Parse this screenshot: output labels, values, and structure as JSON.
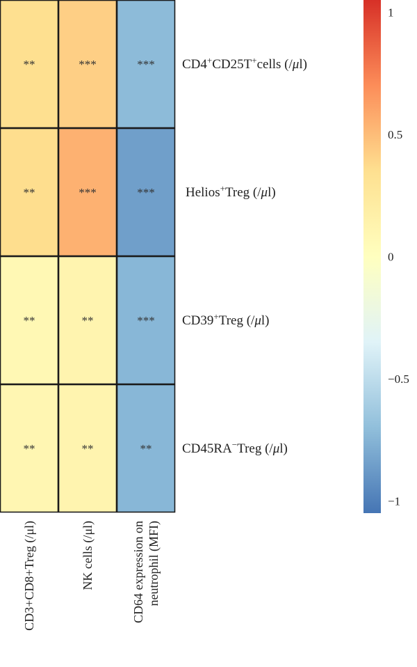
{
  "chart_data": {
    "type": "heatmap",
    "rows": [
      {
        "label_main": "CD4",
        "sup1": "+",
        "mid": "CD25T",
        "sup2": "+",
        "tail": "cells (/",
        "unit": "μ",
        "end": "l)"
      },
      {
        "label_main": "Helios",
        "sup1": "+",
        "mid": "Treg (/",
        "sup2": "",
        "tail": "",
        "unit": "μ",
        "end": "l)"
      },
      {
        "label_main": "CD39",
        "sup1": "+",
        "mid": "Treg (/",
        "sup2": "",
        "tail": "",
        "unit": "μ",
        "end": "l)"
      },
      {
        "label_main": "CD45RA",
        "sup1": "−",
        "mid": "Treg (/",
        "sup2": "",
        "tail": "",
        "unit": "μ",
        "end": "l)"
      }
    ],
    "columns": [
      {
        "lines": [
          "CD3+CD8+Treg (/μl)"
        ]
      },
      {
        "lines": [
          "NK cells (/μl)"
        ]
      },
      {
        "lines": [
          "CD64 expression on",
          "neutrophil (MFI)"
        ]
      }
    ],
    "values": [
      [
        0.35,
        0.42,
        -0.72
      ],
      [
        0.36,
        0.55,
        -0.85
      ],
      [
        0.08,
        0.12,
        -0.74
      ],
      [
        0.1,
        0.12,
        -0.74
      ]
    ],
    "significance": [
      [
        "**",
        "***",
        "***"
      ],
      [
        "**",
        "***",
        "***"
      ],
      [
        "**",
        "**",
        "***"
      ],
      [
        "**",
        "**",
        "**"
      ]
    ],
    "colorbar": {
      "range": [
        -1.05,
        1.05
      ],
      "ticks": [
        1,
        0.5,
        0,
        -0.5,
        -1
      ],
      "tick_labels": [
        "1",
        "0.5",
        "0",
        "−0.5",
        "−1"
      ],
      "colors": [
        "#4575b4",
        "#91bfdb",
        "#e0f3f8",
        "#ffffbf",
        "#fee090",
        "#fc8d59",
        "#d73027"
      ]
    }
  }
}
